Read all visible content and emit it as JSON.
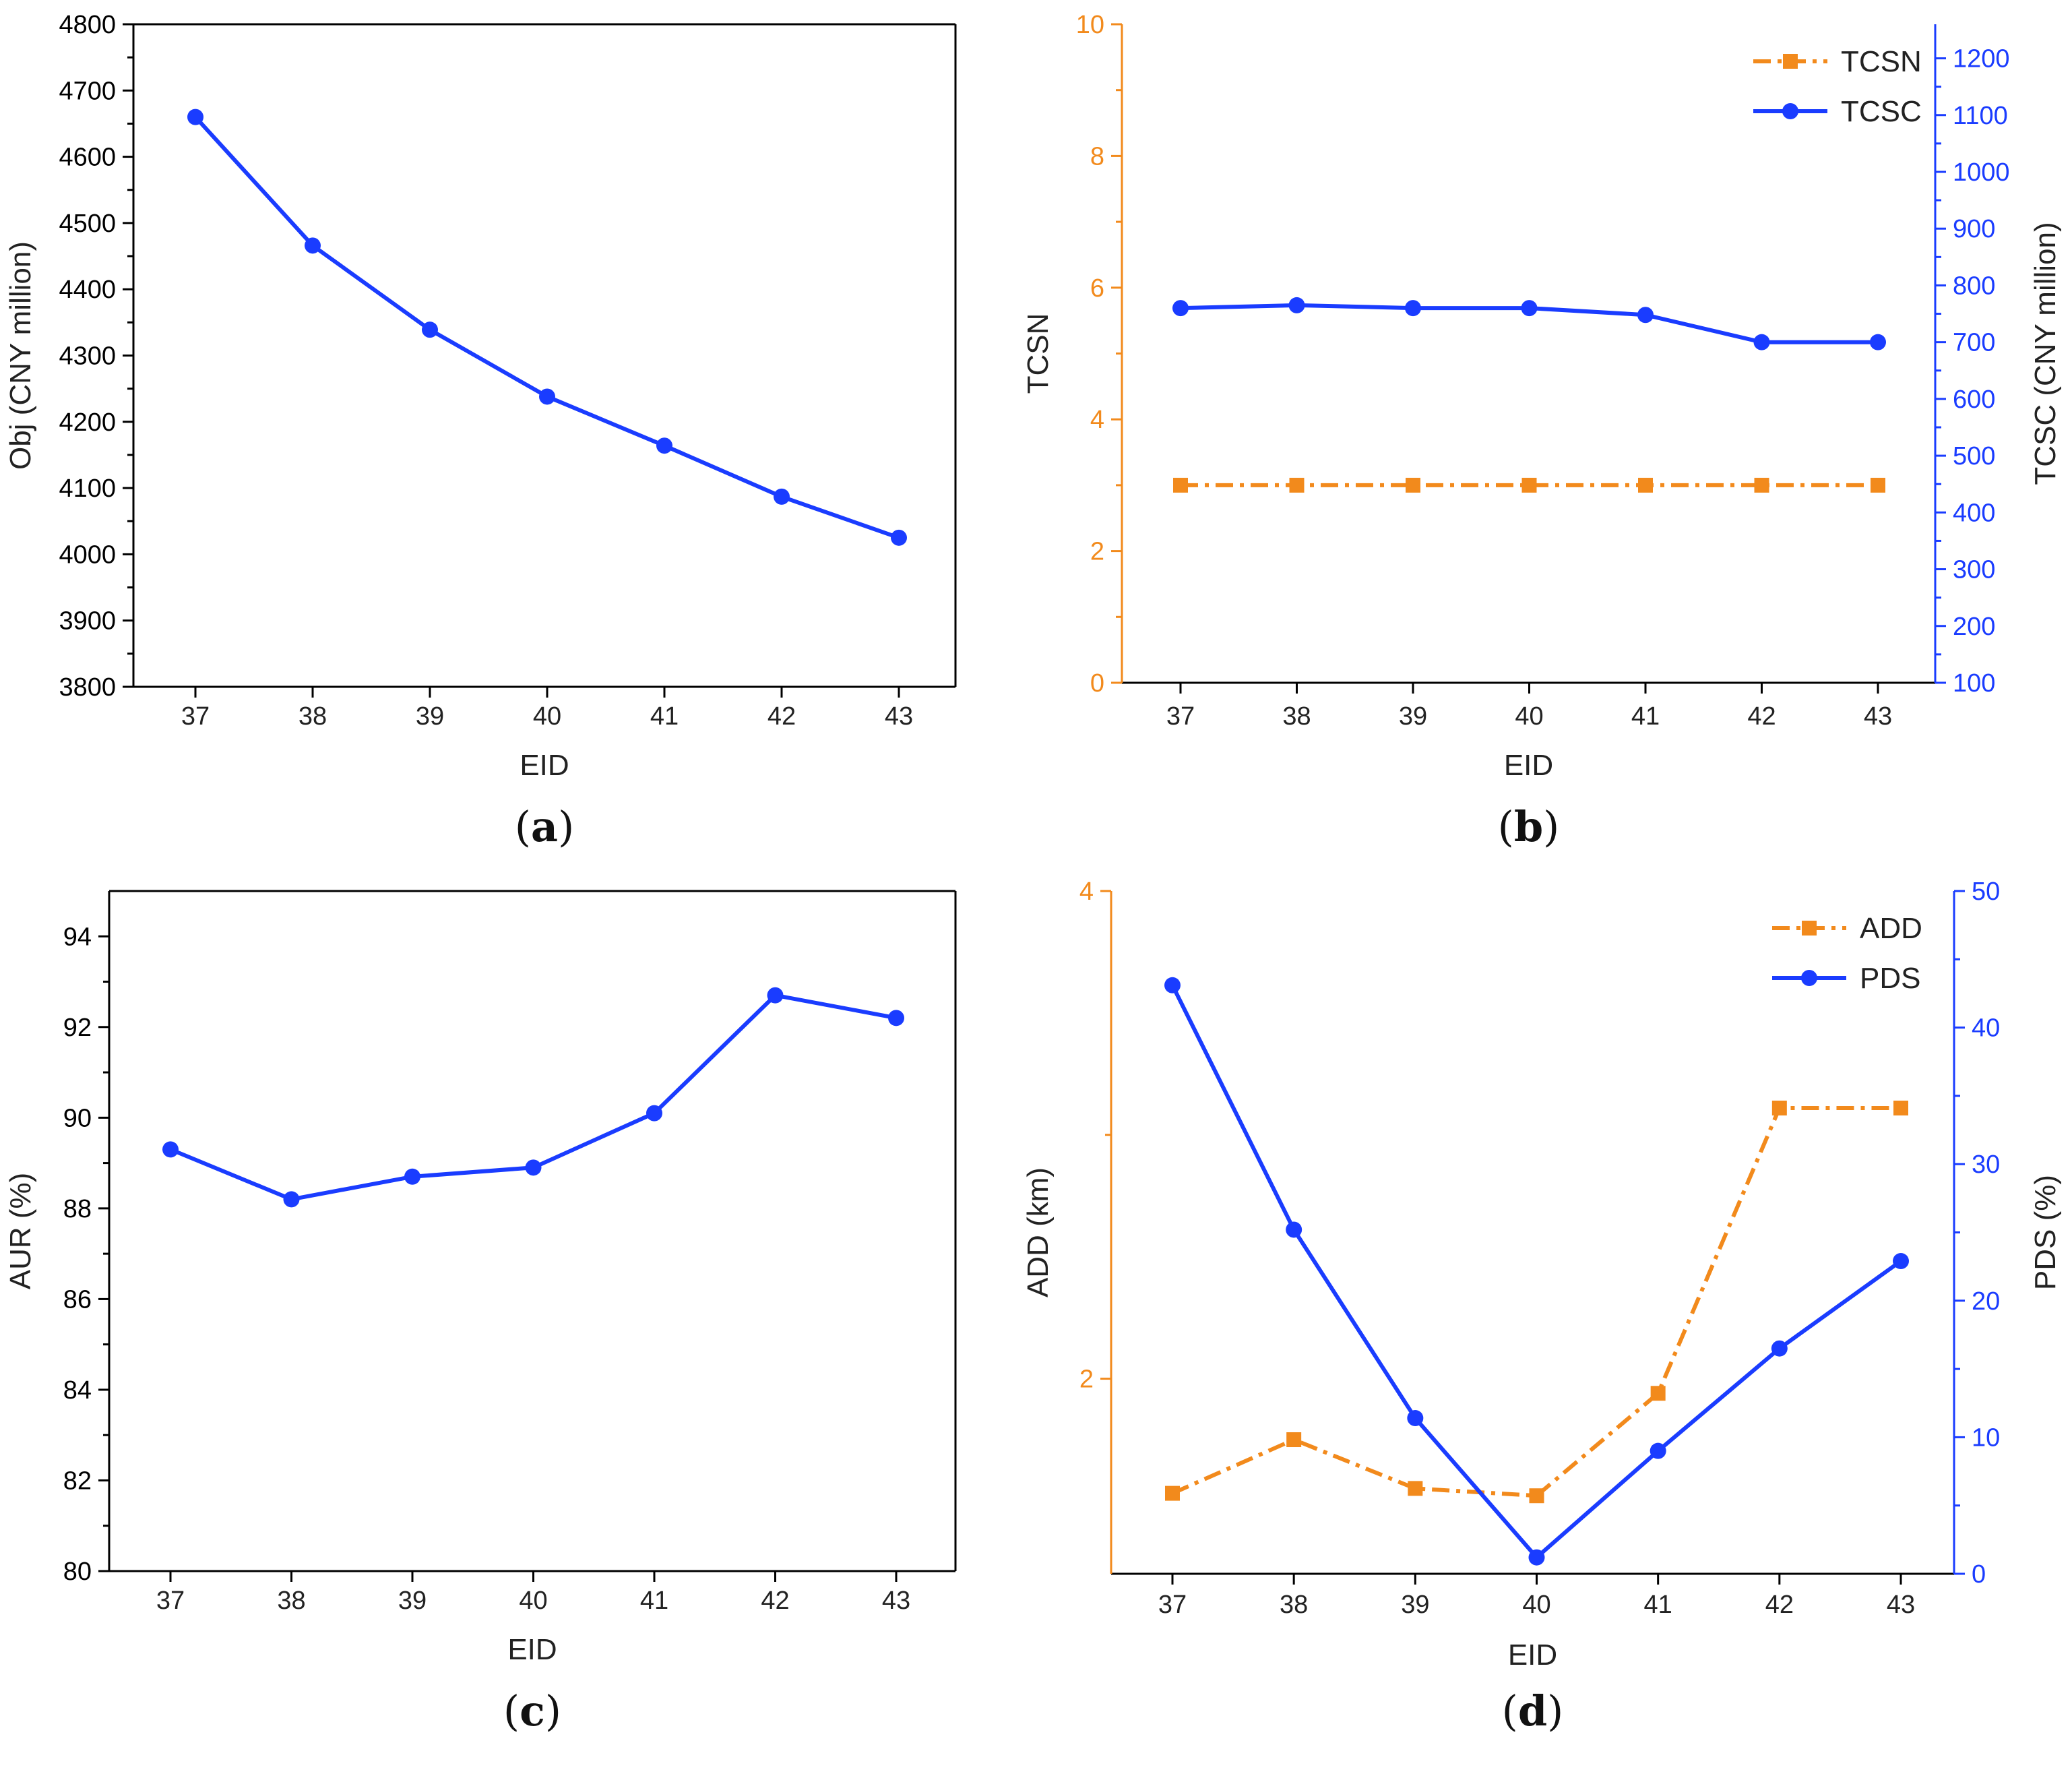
{
  "colors": {
    "blue": "#1a3cff",
    "orange": "#f28a1c",
    "axis": "#000000"
  },
  "chart_data": [
    {
      "panel": "a",
      "type": "line",
      "x": [
        37,
        38,
        39,
        40,
        41,
        42,
        43
      ],
      "series": [
        {
          "name": "Obj",
          "axis": "left",
          "color": "blue",
          "marker": "circle",
          "values": [
            4660,
            4466,
            4339,
            4238,
            4164,
            4087,
            4025
          ]
        }
      ],
      "xlabel": "EID",
      "ylabel": "Obj (CNY million)",
      "ylim": [
        3800,
        4800
      ],
      "yticks": [
        3800,
        3900,
        4000,
        4100,
        4200,
        4300,
        4400,
        4500,
        4600,
        4700,
        4800
      ],
      "xticks": [
        "37",
        "38",
        "39",
        "40",
        "41",
        "42",
        "43"
      ],
      "label": {
        "open": "(",
        "letter": "a",
        "close": ")"
      }
    },
    {
      "panel": "b",
      "type": "line",
      "x": [
        37,
        38,
        39,
        40,
        41,
        42,
        43
      ],
      "series": [
        {
          "name": "TCSN",
          "axis": "left",
          "color": "orange",
          "marker": "square",
          "dash": "dashdot",
          "values": [
            3,
            3,
            3,
            3,
            3,
            3,
            3
          ]
        },
        {
          "name": "TCSC",
          "axis": "right",
          "color": "blue",
          "marker": "circle",
          "values": [
            760,
            765,
            760,
            760,
            748,
            700,
            700
          ]
        }
      ],
      "xlabel": "EID",
      "ylabel": "TCSN",
      "y2label": "TCSC (CNY million)",
      "ylim": [
        0,
        10
      ],
      "yticks": [
        0,
        2,
        4,
        6,
        8,
        10
      ],
      "y2lim": [
        100,
        1260
      ],
      "y2ticks": [
        100,
        200,
        300,
        400,
        500,
        600,
        700,
        800,
        900,
        1000,
        1100,
        1200
      ],
      "xticks": [
        "37",
        "38",
        "39",
        "40",
        "41",
        "42",
        "43"
      ],
      "legend": [
        "TCSN",
        "TCSC"
      ],
      "label": {
        "open": "(",
        "letter": "b",
        "close": ")"
      }
    },
    {
      "panel": "c",
      "type": "line",
      "x": [
        37,
        38,
        39,
        40,
        41,
        42,
        43
      ],
      "series": [
        {
          "name": "AUR",
          "axis": "left",
          "color": "blue",
          "marker": "circle",
          "values": [
            89.3,
            88.2,
            88.7,
            88.9,
            90.1,
            92.7,
            92.2
          ]
        }
      ],
      "xlabel": "EID",
      "ylabel": "AUR (%)",
      "ylim": [
        80,
        95
      ],
      "yticks": [
        80,
        82,
        84,
        86,
        88,
        90,
        92,
        94
      ],
      "xticks": [
        "37",
        "38",
        "39",
        "40",
        "41",
        "42",
        "43"
      ],
      "label": {
        "open": "(",
        "letter": "c",
        "close": ")"
      }
    },
    {
      "panel": "d",
      "type": "line",
      "x": [
        37,
        38,
        39,
        40,
        41,
        42,
        43
      ],
      "series": [
        {
          "name": "ADD",
          "axis": "left",
          "color": "orange",
          "marker": "square",
          "dash": "dashdot",
          "values": [
            1.53,
            1.75,
            1.55,
            1.52,
            1.94,
            3.11,
            3.11
          ]
        },
        {
          "name": "PDS",
          "axis": "right",
          "color": "blue",
          "marker": "circle",
          "values": [
            43.1,
            25.2,
            11.4,
            1.2,
            9.0,
            16.5,
            22.9
          ]
        }
      ],
      "xlabel": "EID",
      "ylabel": "ADD (km)",
      "y2label": "PDS (%)",
      "ylim": [
        1.2,
        4
      ],
      "yticks": [
        2,
        4
      ],
      "y2lim": [
        0,
        50
      ],
      "y2ticks": [
        0,
        10,
        20,
        30,
        40,
        50
      ],
      "xticks": [
        "37",
        "38",
        "39",
        "40",
        "41",
        "42",
        "43"
      ],
      "legend": [
        "ADD",
        "PDS"
      ],
      "label": {
        "open": "(",
        "letter": "d",
        "close": ")"
      }
    }
  ]
}
